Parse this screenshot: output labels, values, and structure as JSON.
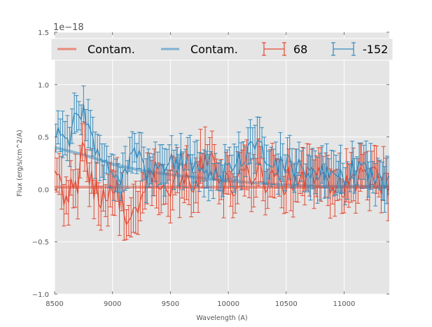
{
  "chart_data": {
    "type": "line",
    "title": "",
    "xlabel": "Wavelength (A)",
    "ylabel": "Flux (erg/s/cm^2/A)",
    "y_offset_text": "1e−18",
    "xlim": [
      8500,
      11390
    ],
    "ylim": [
      -1.0,
      1.5
    ],
    "x_ticks": [
      8500,
      9000,
      9500,
      10000,
      10500,
      11000
    ],
    "x_tick_labels": [
      "8500",
      "9000",
      "9500",
      "10000",
      "10500",
      "11000"
    ],
    "y_ticks": [
      -1.0,
      -0.5,
      0.0,
      0.5,
      1.0,
      1.5
    ],
    "y_tick_labels": [
      "−1.0",
      "−0.5",
      "0.0",
      "0.5",
      "1.0",
      "1.5"
    ],
    "grid": true,
    "style": "ggplot",
    "legend": {
      "placement": "top",
      "ncol": 4,
      "entries": [
        {
          "label": "Contam.",
          "kind": "line",
          "color": "#E8897A"
        },
        {
          "label": "Contam.",
          "kind": "line",
          "color": "#7FB0D3"
        },
        {
          "label": "68",
          "kind": "errorbar",
          "color": "#E24A33"
        },
        {
          "label": "-152",
          "kind": "errorbar",
          "color": "#348ABD"
        }
      ]
    },
    "series": [
      {
        "name": "Contam.",
        "kind": "contamination",
        "color": "#E24A33",
        "x": [
          8500,
          9000,
          9500,
          10000,
          10500,
          11000,
          11390
        ],
        "y": [
          0.02,
          0.02,
          0.02,
          0.02,
          0.02,
          0.02,
          0.02
        ]
      },
      {
        "name": "Contam.",
        "kind": "contamination",
        "color": "#348ABD",
        "x": [
          8500,
          8750,
          9000,
          9250,
          9500,
          9750,
          10000,
          10250,
          10500,
          10750,
          11000,
          11390
        ],
        "y": [
          0.4,
          0.33,
          0.24,
          0.18,
          0.14,
          0.11,
          0.08,
          0.06,
          0.04,
          0.03,
          0.03,
          0.03
        ]
      },
      {
        "name": "68",
        "kind": "errorbar",
        "color": "#E24A33",
        "x_start": 8500,
        "x_step": 20,
        "n": 145,
        "anchors_x": [
          8500,
          8550,
          8600,
          8650,
          8700,
          8750,
          8800,
          8900,
          9000,
          9100,
          9150,
          9300,
          9500,
          9700,
          9850,
          9900,
          10000,
          10200,
          10300,
          10500,
          10700,
          10900,
          11000,
          11200,
          11390
        ],
        "anchors_y": [
          0.25,
          0.05,
          -0.1,
          0.15,
          -0.05,
          0.4,
          0.1,
          -0.05,
          0.05,
          -0.15,
          -0.35,
          0.05,
          0.05,
          0.1,
          0.3,
          0.1,
          0.05,
          0.15,
          0.1,
          0.08,
          0.12,
          0.05,
          0.05,
          0.1,
          0.05
        ],
        "noise": 0.14,
        "err": 0.2
      },
      {
        "name": "-152",
        "kind": "errorbar",
        "color": "#348ABD",
        "x_start": 8510,
        "x_step": 20,
        "n": 145,
        "anchors_x": [
          8500,
          8600,
          8680,
          8760,
          8850,
          8950,
          9050,
          9200,
          9300,
          9500,
          9700,
          9900,
          10100,
          10250,
          10400,
          10600,
          10800,
          11000,
          11150,
          11250,
          11390
        ],
        "anchors_y": [
          0.55,
          0.4,
          0.65,
          0.75,
          0.35,
          0.2,
          0.1,
          0.35,
          0.15,
          0.3,
          0.25,
          0.15,
          0.25,
          0.45,
          0.25,
          0.2,
          0.15,
          0.12,
          0.3,
          0.1,
          0.1
        ],
        "noise": 0.11,
        "err": 0.18
      }
    ]
  }
}
